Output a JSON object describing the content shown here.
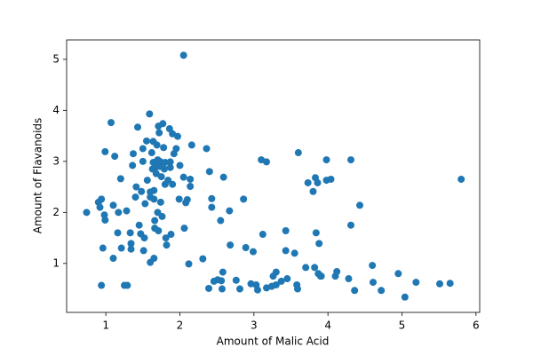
{
  "chart_data": {
    "type": "scatter",
    "xlabel": "Amount of Malic Acid",
    "ylabel": "Amount of Flavanoids",
    "color": "#1f77b4",
    "grid": false,
    "xlim": [
      0.47,
      6.05
    ],
    "ylim": [
      0.04,
      5.38
    ],
    "xticks": [
      1,
      2,
      3,
      4,
      5,
      6
    ],
    "yticks": [
      1,
      2,
      3,
      4,
      5
    ],
    "x": [
      0.74,
      0.9,
      0.94,
      0.92,
      0.98,
      0.99,
      0.96,
      0.94,
      0.99,
      1.07,
      1.1,
      1.12,
      1.16,
      1.17,
      1.1,
      1.21,
      1.2,
      1.25,
      1.29,
      1.28,
      1.33,
      1.34,
      1.34,
      1.36,
      1.37,
      1.4,
      1.41,
      1.43,
      1.45,
      1.47,
      1.48,
      1.5,
      1.5,
      1.53,
      1.51,
      1.52,
      1.56,
      1.55,
      1.59,
      1.6,
      1.6,
      1.62,
      1.63,
      1.64,
      1.64,
      1.65,
      1.65,
      1.66,
      1.66,
      1.6,
      1.65,
      1.67,
      1.67,
      1.68,
      1.69,
      1.7,
      1.7,
      1.71,
      1.71,
      1.72,
      1.73,
      1.73,
      1.74,
      1.75,
      1.76,
      1.77,
      1.78,
      1.79,
      1.8,
      1.8,
      1.81,
      1.82,
      1.84,
      1.86,
      1.87,
      1.87,
      1.88,
      1.9,
      1.9,
      1.92,
      1.95,
      1.97,
      1.99,
      2.0,
      2.05,
      2.05,
      2.06,
      2.08,
      2.1,
      2.12,
      2.14,
      2.14,
      2.16,
      2.31,
      2.36,
      2.39,
      2.4,
      2.43,
      2.43,
      2.46,
      2.51,
      2.55,
      2.56,
      2.57,
      2.58,
      2.59,
      2.67,
      2.68,
      2.76,
      2.81,
      2.86,
      2.89,
      2.96,
      2.99,
      3.03,
      3.05,
      3.1,
      3.12,
      3.17,
      3.17,
      3.24,
      3.26,
      3.3,
      3.3,
      3.37,
      3.43,
      3.43,
      3.45,
      3.55,
      3.58,
      3.59,
      3.6,
      3.7,
      3.73,
      3.8,
      3.82,
      3.83,
      3.84,
      3.86,
      3.87,
      3.88,
      3.9,
      3.91,
      3.98,
      3.98,
      4.04,
      4.1,
      4.12,
      4.28,
      4.31,
      4.31,
      4.36,
      4.43,
      4.6,
      4.61,
      4.72,
      4.95,
      5.04,
      5.19,
      5.51,
      5.65,
      5.8
    ],
    "values": [
      2.0,
      2.2,
      2.26,
      2.1,
      1.95,
      1.85,
      1.3,
      0.57,
      3.19,
      3.76,
      2.14,
      3.1,
      1.6,
      2.0,
      1.1,
      1.3,
      2.66,
      0.57,
      0.57,
      2.03,
      1.6,
      1.28,
      1.39,
      2.92,
      3.15,
      2.3,
      2.5,
      3.67,
      1.75,
      1.58,
      2.41,
      3.0,
      3.25,
      2.17,
      1.25,
      1.5,
      2.63,
      3.4,
      3.93,
      2.3,
      2.4,
      3.17,
      2.85,
      2.98,
      3.39,
      2.43,
      2.26,
      1.84,
      1.69,
      1.02,
      1.1,
      2.98,
      2.88,
      2.76,
      3.32,
      3.03,
      2.0,
      1.64,
      3.69,
      3.56,
      2.9,
      3.0,
      2.2,
      2.7,
      1.92,
      3.74,
      3.27,
      2.85,
      2.98,
      2.55,
      1.5,
      1.36,
      2.63,
      3.64,
      2.99,
      2.88,
      1.57,
      2.55,
      3.54,
      3.15,
      3.25,
      3.49,
      2.26,
      2.92,
      2.69,
      5.08,
      1.69,
      2.19,
      2.25,
      0.99,
      2.65,
      2.51,
      3.32,
      1.09,
      3.25,
      0.51,
      2.8,
      2.27,
      2.1,
      0.65,
      0.68,
      1.84,
      0.66,
      0.5,
      0.83,
      2.69,
      2.03,
      1.36,
      0.67,
      0.5,
      2.26,
      1.31,
      0.6,
      1.23,
      0.58,
      0.48,
      3.03,
      1.57,
      2.99,
      0.52,
      0.55,
      0.75,
      0.58,
      0.83,
      0.65,
      1.25,
      1.64,
      0.7,
      1.2,
      0.58,
      0.5,
      3.17,
      0.92,
      2.58,
      2.41,
      0.92,
      2.68,
      1.6,
      2.58,
      0.8,
      1.39,
      0.75,
      0.75,
      3.03,
      2.63,
      2.65,
      0.75,
      0.84,
      0.7,
      1.75,
      3.03,
      0.47,
      2.14,
      0.96,
      0.63,
      0.47,
      0.8,
      0.34,
      0.63,
      0.6,
      0.61,
      2.65
    ]
  }
}
